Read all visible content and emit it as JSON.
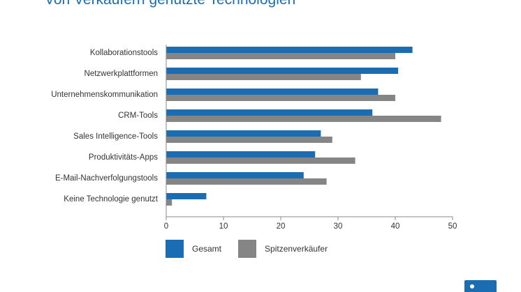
{
  "page": {
    "title": "Von Verkäufern genutzte Technologien"
  },
  "colors": {
    "gesamt": "#1a6db3",
    "spitzen": "#858585",
    "axis": "#888888",
    "text": "#333333"
  },
  "chart_data": {
    "type": "bar",
    "orientation": "horizontal",
    "categories": [
      "Kollaborationstools",
      "Netzwerkplattformen",
      "Unternehmenskommunikation",
      "CRM-Tools",
      "Sales Intelligence-Tools",
      "Produktivitäts-Apps",
      "E-Mail-Nachverfolgungstools",
      "Keine Technologie genutzt"
    ],
    "series": [
      {
        "name": "Gesamt",
        "values": [
          43,
          40.5,
          37,
          36,
          27,
          26,
          24,
          7
        ]
      },
      {
        "name": "Spitzenverkäufer",
        "values": [
          40,
          34,
          40,
          48,
          29,
          33,
          28,
          1
        ]
      }
    ],
    "xlim": [
      0,
      50
    ],
    "xticks": [
      "0",
      "10",
      "20",
      "30",
      "40",
      "50"
    ],
    "grid": false,
    "legend_position": "bottom"
  }
}
